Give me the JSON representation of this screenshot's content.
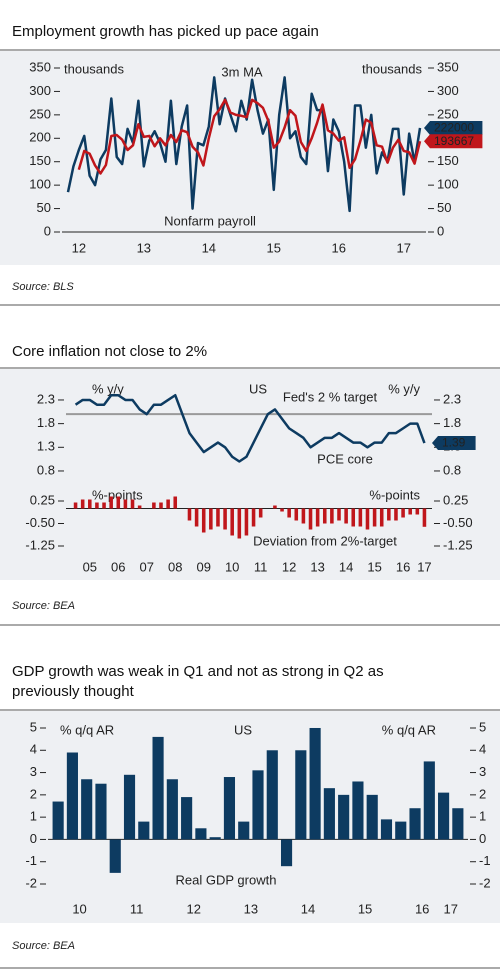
{
  "chart_data": [
    {
      "type": "line",
      "title": [
        "Employment growth has picked up pace again"
      ],
      "source": "Source: BLS",
      "y_label": "thousands",
      "y2_label": "thousands",
      "annotations": [
        "3m MA",
        "Nonfarm payroll"
      ],
      "categories": [
        null,
        null,
        "12",
        null,
        null,
        null,
        null,
        null,
        null,
        null,
        null,
        null,
        null,
        null,
        "13",
        null,
        null,
        null,
        null,
        null,
        null,
        null,
        null,
        null,
        null,
        null,
        "14",
        null,
        null,
        null,
        null,
        null,
        null,
        null,
        null,
        null,
        null,
        null,
        "15",
        null,
        null,
        null,
        null,
        null,
        null,
        null,
        null,
        null,
        null,
        null,
        "16",
        null,
        null,
        null,
        null,
        null,
        null,
        null,
        null,
        null,
        null,
        null,
        "17",
        null,
        null,
        null
      ],
      "series": [
        {
          "name": "Nonfarm payroll",
          "color": "#0d3b61",
          "values": [
            85,
            140,
            175,
            205,
            120,
            100,
            155,
            175,
            285,
            160,
            145,
            220,
            190,
            280,
            140,
            195,
            215,
            190,
            150,
            280,
            145,
            225,
            270,
            50,
            190,
            185,
            225,
            330,
            230,
            285,
            250,
            215,
            280,
            240,
            325,
            260,
            210,
            240,
            90,
            250,
            330,
            200,
            215,
            160,
            145,
            295,
            260,
            260,
            130,
            240,
            215,
            150,
            45,
            270,
            270,
            180,
            250,
            125,
            170,
            150,
            220,
            220,
            80,
            210,
            149,
            222
          ],
          "value_labels": [
            null,
            null,
            null,
            null,
            null,
            null,
            null,
            null,
            null,
            null,
            null,
            null,
            null,
            null,
            null,
            null,
            null,
            null,
            null,
            null,
            null,
            null,
            null,
            null,
            null,
            null,
            null,
            null,
            null,
            null,
            null,
            null,
            null,
            null,
            null,
            null,
            null,
            null,
            null,
            null,
            null,
            null,
            null,
            null,
            null,
            null,
            null,
            null,
            null,
            null,
            null,
            null,
            null,
            null,
            null,
            null,
            null,
            null,
            null,
            null,
            null,
            null,
            null,
            null,
            null,
            "222000"
          ]
        },
        {
          "name": "3m MA",
          "color": "#c0161b",
          "values": [
            null,
            null,
            133,
            173,
            167,
            142,
            125,
            143,
            205,
            207,
            197,
            175,
            185,
            230,
            203,
            205,
            183,
            200,
            185,
            207,
            192,
            217,
            213,
            182,
            170,
            142,
            200,
            247,
            262,
            282,
            255,
            250,
            248,
            245,
            282,
            275,
            265,
            237,
            180,
            193,
            223,
            260,
            248,
            192,
            173,
            200,
            233,
            272,
            217,
            210,
            195,
            202,
            137,
            155,
            195,
            240,
            233,
            185,
            182,
            148,
            180,
            197,
            173,
            170,
            146,
            193.667
          ],
          "value_labels": [
            null,
            null,
            null,
            null,
            null,
            null,
            null,
            null,
            null,
            null,
            null,
            null,
            null,
            null,
            null,
            null,
            null,
            null,
            null,
            null,
            null,
            null,
            null,
            null,
            null,
            null,
            null,
            null,
            null,
            null,
            null,
            null,
            null,
            null,
            null,
            null,
            null,
            null,
            null,
            null,
            null,
            null,
            null,
            null,
            null,
            null,
            null,
            null,
            null,
            null,
            null,
            null,
            null,
            null,
            null,
            null,
            null,
            null,
            null,
            null,
            null,
            null,
            null,
            null,
            null,
            "193667"
          ]
        }
      ],
      "ylim": [
        0,
        350
      ],
      "yticks": [
        0,
        50,
        100,
        150,
        200,
        250,
        300,
        350
      ],
      "y2lim": [
        0,
        350
      ],
      "y2ticks": [
        0,
        50,
        100,
        150,
        200,
        250,
        300,
        350
      ]
    },
    {
      "type": "line",
      "title": [
        "Core inflation not close to 2%"
      ],
      "source": "Source: BEA",
      "y_label": "% y/y",
      "y2_label": "% y/y",
      "annotations": [
        "US",
        "PCE core"
      ],
      "hline": {
        "value": 2,
        "label": "Fed's 2 % target",
        "color": "#9a9a9a"
      },
      "series": [
        {
          "name": "PCE core",
          "color": "#0d3b61",
          "values": [
            2.2,
            2.3,
            2.3,
            2.2,
            2.2,
            2.4,
            2.4,
            2.3,
            2.3,
            2.1,
            2.0,
            2.2,
            2.2,
            2.3,
            2.4,
            2.0,
            1.6,
            1.4,
            1.2,
            1.3,
            1.4,
            1.3,
            1.1,
            1.0,
            1.1,
            1.4,
            1.7,
            2.0,
            2.1,
            1.9,
            1.7,
            1.6,
            1.5,
            1.3,
            1.4,
            1.5,
            1.5,
            1.6,
            1.5,
            1.4,
            1.4,
            1.3,
            1.4,
            1.4,
            1.6,
            1.6,
            1.7,
            1.8,
            1.8,
            1.39
          ],
          "value_labels": [
            null,
            null,
            null,
            null,
            null,
            null,
            null,
            null,
            null,
            null,
            null,
            null,
            null,
            null,
            null,
            null,
            null,
            null,
            null,
            null,
            null,
            null,
            null,
            null,
            null,
            null,
            null,
            null,
            null,
            null,
            null,
            null,
            null,
            null,
            null,
            null,
            null,
            null,
            null,
            null,
            null,
            null,
            null,
            null,
            null,
            null,
            null,
            null,
            null,
            "1.39"
          ]
        }
      ],
      "ylim": [
        0.7,
        2.5
      ],
      "yticks": [
        0.8,
        1.3,
        1.8,
        2.3
      ],
      "y2lim": [
        0.7,
        2.5
      ],
      "y2ticks": [
        0.8,
        1.3,
        1.8,
        2.3
      ]
    },
    {
      "type": "bar",
      "y_label": "%-points",
      "y2_label": "%-points",
      "annotations": [
        "Deviation from 2%-target"
      ],
      "categories": [
        null,
        null,
        "05",
        null,
        null,
        null,
        "06",
        null,
        null,
        null,
        "07",
        null,
        null,
        null,
        "08",
        null,
        null,
        null,
        "09",
        null,
        null,
        null,
        "10",
        null,
        null,
        null,
        "11",
        null,
        null,
        null,
        "12",
        null,
        null,
        null,
        "13",
        null,
        null,
        null,
        "14",
        null,
        null,
        null,
        "15",
        null,
        null,
        null,
        "16",
        null,
        null,
        "17"
      ],
      "series": [
        {
          "name": "Deviation from 2%-target",
          "color": "#c0161b",
          "values": [
            0.2,
            0.3,
            0.3,
            0.2,
            0.2,
            0.4,
            0.4,
            0.3,
            0.3,
            0.1,
            0.0,
            0.2,
            0.2,
            0.3,
            0.4,
            0.0,
            -0.4,
            -0.6,
            -0.8,
            -0.7,
            -0.6,
            -0.7,
            -0.9,
            -1.0,
            -0.9,
            -0.6,
            -0.3,
            0.0,
            0.1,
            -0.1,
            -0.3,
            -0.4,
            -0.5,
            -0.7,
            -0.6,
            -0.5,
            -0.5,
            -0.4,
            -0.5,
            -0.6,
            -0.6,
            -0.7,
            -0.6,
            -0.6,
            -0.4,
            -0.4,
            -0.3,
            -0.2,
            -0.2,
            -0.61
          ]
        }
      ],
      "ylim": [
        -1.5,
        0.5
      ],
      "yticks": [
        0.25,
        {
          "value": -0.5,
          "label": "-0.50"
        },
        -1.25
      ],
      "y2lim": [
        -1.5,
        0.5
      ],
      "y2ticks": [
        0.25,
        {
          "value": -0.5,
          "label": "-0.50"
        },
        -1.25
      ]
    },
    {
      "type": "bar",
      "title": [
        "GDP growth was weak in Q1 and not as strong in Q2 as",
        "previously thought"
      ],
      "source": "Source: BEA",
      "y_label": "% q/q AR",
      "y2_label": "% q/q AR",
      "annotations": [
        "US",
        "Real GDP growth"
      ],
      "categories": [
        null,
        "10",
        null,
        null,
        null,
        "11",
        null,
        null,
        null,
        "12",
        null,
        null,
        null,
        "13",
        null,
        null,
        null,
        "14",
        null,
        null,
        null,
        "15",
        null,
        null,
        null,
        "16",
        null,
        "17",
        null
      ],
      "series": [
        {
          "name": "Real GDP growth",
          "color": "#0d3b61",
          "values": [
            1.7,
            3.9,
            2.7,
            2.5,
            -1.5,
            2.9,
            0.8,
            4.6,
            2.7,
            1.9,
            0.5,
            0.1,
            2.8,
            0.8,
            3.1,
            4.0,
            -1.2,
            4.0,
            5.0,
            2.3,
            2.0,
            2.6,
            2.0,
            0.9,
            0.8,
            1.4,
            3.5,
            2.1,
            1.4
          ]
        }
      ],
      "ylim": [
        -2.3,
        5.3
      ],
      "yticks": [
        -2,
        -1,
        0,
        1,
        2,
        3,
        4,
        5
      ],
      "y2lim": [
        -2.3,
        5.3
      ],
      "y2ticks": [
        -2,
        -1,
        0,
        1,
        2,
        3,
        4,
        5
      ]
    }
  ]
}
